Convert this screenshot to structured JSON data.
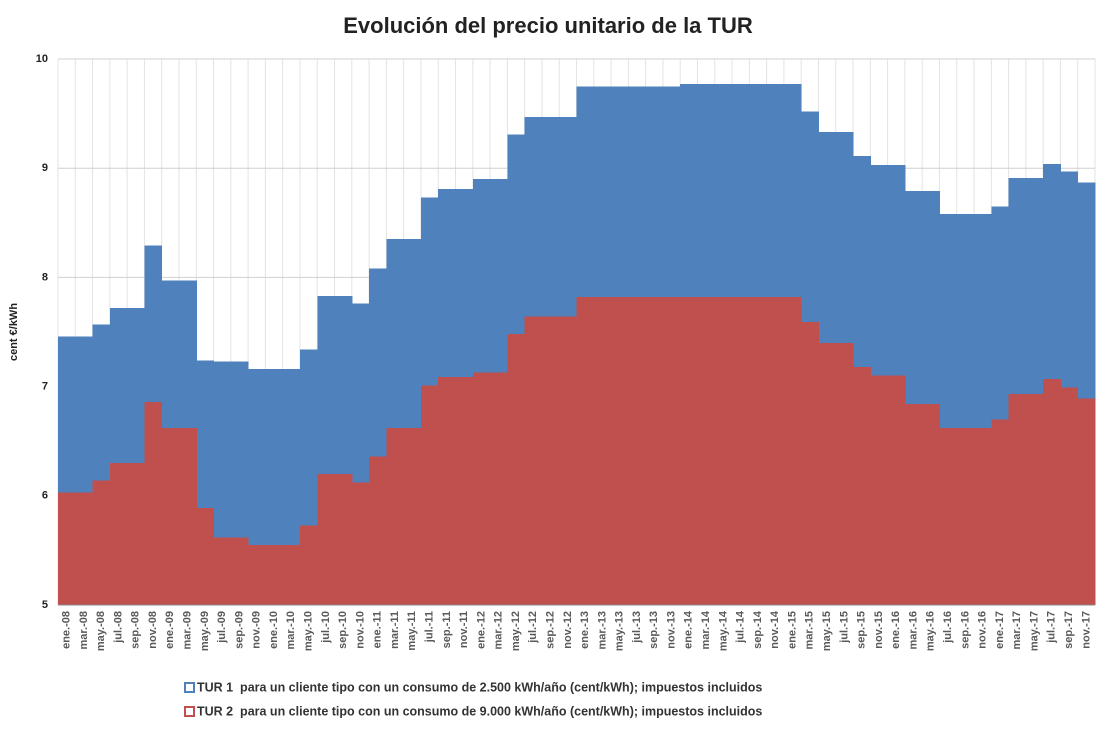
{
  "chart_data": {
    "type": "step-area",
    "title": "Evolución del precio unitario de la TUR",
    "y_label": "cent €/kWh",
    "categories": [
      "ene.-08",
      "mar.-08",
      "may.-08",
      "jul.-08",
      "sep.-08",
      "nov.-08",
      "ene.-09",
      "mar.-09",
      "may.-09",
      "jul.-09",
      "sep.-09",
      "nov.-09",
      "ene.-10",
      "mar.-10",
      "may.-10",
      "jul.-10",
      "sep.-10",
      "nov.-10",
      "ene.-11",
      "mar.-11",
      "may.-11",
      "jul.-11",
      "sep.-11",
      "nov.-11",
      "ene.-12",
      "mar.-12",
      "may.-12",
      "jul.-12",
      "sep.-12",
      "nov.-12",
      "ene.-13",
      "mar.-13",
      "may.-13",
      "jul.-13",
      "sep.-13",
      "nov.-13",
      "ene.-14",
      "mar.-14",
      "may.-14",
      "jul.-14",
      "sep.-14",
      "nov.-14",
      "ene.-15",
      "mar.-15",
      "may.-15",
      "jul.-15",
      "sep.-15",
      "nov.-15",
      "ene.-16",
      "mar.-16",
      "may.-16",
      "jul.-16",
      "sep.-16",
      "nov.-16",
      "ene.-17",
      "mar.-17",
      "may.-17",
      "jul.-17",
      "sep.-17",
      "nov.-17"
    ],
    "series": [
      {
        "name": "TUR 1  para un cliente tipo con un consumo de 2.500 kWh/año (cent/kWh); impuestos incluidos",
        "color": "#4f81bd",
        "values": [
          7.46,
          7.46,
          7.57,
          7.72,
          7.72,
          8.29,
          7.97,
          7.97,
          7.24,
          7.23,
          7.23,
          7.16,
          7.16,
          7.16,
          7.34,
          7.83,
          7.83,
          7.76,
          8.08,
          8.35,
          8.35,
          8.73,
          8.81,
          8.81,
          8.9,
          8.9,
          9.31,
          9.47,
          9.47,
          9.47,
          9.75,
          9.75,
          9.75,
          9.75,
          9.75,
          9.75,
          9.77,
          9.77,
          9.77,
          9.77,
          9.77,
          9.77,
          9.77,
          9.52,
          9.33,
          9.33,
          9.11,
          9.03,
          9.03,
          8.79,
          8.79,
          8.58,
          8.58,
          8.58,
          8.65,
          8.91,
          8.91,
          9.04,
          8.97,
          8.87
        ]
      },
      {
        "name": "TUR 2  para un cliente tipo con un consumo de 9.000 kWh/año (cent/kWh); impuestos incluidos",
        "color": "#c0504d",
        "values": [
          6.03,
          6.03,
          6.14,
          6.3,
          6.3,
          6.86,
          6.62,
          6.62,
          5.89,
          5.62,
          5.62,
          5.55,
          5.55,
          5.55,
          5.73,
          6.2,
          6.2,
          6.12,
          6.36,
          6.62,
          6.62,
          7.01,
          7.09,
          7.09,
          7.13,
          7.13,
          7.48,
          7.64,
          7.64,
          7.64,
          7.82,
          7.82,
          7.82,
          7.82,
          7.82,
          7.82,
          7.82,
          7.82,
          7.82,
          7.82,
          7.82,
          7.82,
          7.82,
          7.59,
          7.4,
          7.4,
          7.18,
          7.1,
          7.1,
          6.84,
          6.84,
          6.62,
          6.62,
          6.62,
          6.7,
          6.93,
          6.93,
          7.07,
          6.99,
          6.89
        ]
      }
    ],
    "ylim": [
      5,
      10
    ],
    "yticks": [
      5,
      6,
      7,
      8,
      9,
      10
    ],
    "grid": true,
    "legend": "bottom"
  }
}
